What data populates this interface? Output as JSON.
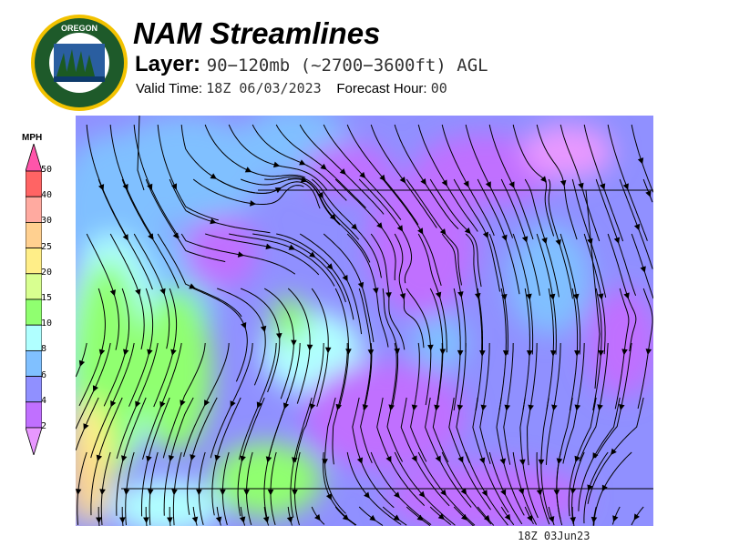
{
  "header": {
    "logo_text": "OREGON DEPARTMENT OF FORESTRY",
    "title": "NAM Streamlines",
    "layer_label": "Layer:",
    "layer_value": "90−120mb (~2700−3600ft) AGL",
    "valid_label": "Valid Time:",
    "valid_value": "18Z 06/03/2023",
    "forecast_label": "Forecast Hour:",
    "forecast_value": "00"
  },
  "legend": {
    "unit": "MPH",
    "ticks": [
      "50",
      "40",
      "30",
      "25",
      "20",
      "15",
      "10",
      "8",
      "6",
      "4",
      "2"
    ],
    "colors": {
      "above": "#ff55aa",
      "40-50": "#ff6464",
      "30-40": "#ffaaa0",
      "25-30": "#ffd090",
      "20-25": "#ffee88",
      "15-20": "#d8ff90",
      "10-15": "#90ff70",
      "8-10": "#b0ffff",
      "6-8": "#80c0ff",
      "4-6": "#9090ff",
      "2-4": "#c070ff",
      "below": "#e898ff"
    }
  },
  "footer": {
    "timestamp": "18Z 03Jun23"
  }
}
